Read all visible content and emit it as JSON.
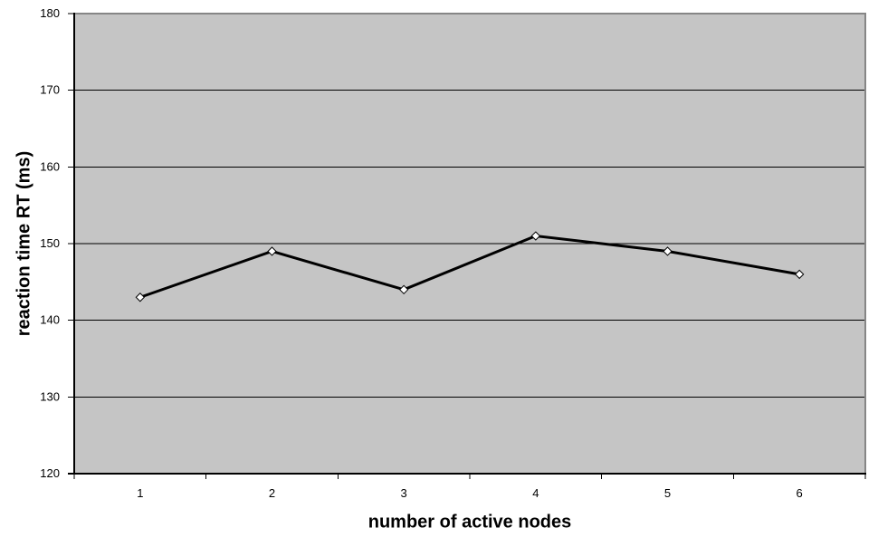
{
  "chart_data": {
    "type": "line",
    "title": "",
    "xlabel": "number of active nodes",
    "ylabel": "reaction time RT (ms)",
    "categories": [
      "1",
      "2",
      "3",
      "4",
      "5",
      "6"
    ],
    "series": [
      {
        "name": "reaction time",
        "values": [
          143,
          149,
          144,
          151,
          149,
          146
        ]
      }
    ],
    "ylim": [
      120,
      180
    ],
    "y_ticks": [
      120,
      130,
      140,
      150,
      160,
      170,
      180
    ],
    "grid": "horizontal",
    "legend": "none",
    "marker": "diamond",
    "colors": {
      "page_background": "#ffffff",
      "plot_background": "#c5c5c5",
      "plot_border": "#868686",
      "gridline": "#000000",
      "axis": "#000000",
      "series_line": "#000000",
      "marker_fill": "#ffffff",
      "marker_stroke": "#000000",
      "text": "#000000"
    }
  }
}
